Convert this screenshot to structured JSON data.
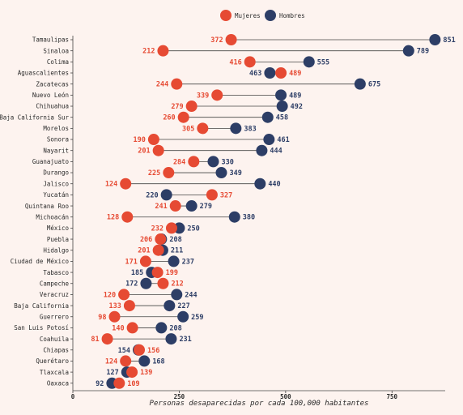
{
  "chart_data": {
    "type": "dumbbell",
    "xlabel": "Personas desaparecidas por cada 100,000 habitantes",
    "xlim": [
      0,
      875
    ],
    "xticks": [
      "0",
      "250",
      "500",
      "750"
    ],
    "tick_values": [
      0,
      250,
      500,
      750
    ],
    "legend": {
      "placement": "top-center",
      "entries": [
        "Mujeres",
        "Hombres"
      ]
    },
    "colors": {
      "mujeres": "#e64a33",
      "hombres": "#2d3e66",
      "connector": "#444444",
      "background": "#fdf3ef"
    },
    "categories": [
      "Tamaulipas",
      "Sinaloa",
      "Colima",
      "Aguascalientes",
      "Zacatecas",
      "Nuevo León",
      "Chihuahua",
      "Baja California Sur",
      "Morelos",
      "Sonora",
      "Nayarit",
      "Guanajuato",
      "Durango",
      "Jalisco",
      "Yucatán",
      "Quintana Roo",
      "Michoacán",
      "México",
      "Puebla",
      "Hidalgo",
      "Ciudad de México",
      "Tabasco",
      "Campeche",
      "Veracruz",
      "Baja California",
      "Guerrero",
      "San Luis Potosí",
      "Coahuila",
      "Chiapas",
      "Querétaro",
      "Tlaxcala",
      "Oaxaca"
    ],
    "series": [
      {
        "name": "Mujeres",
        "values": [
          372,
          212,
          416,
          489,
          244,
          339,
          279,
          260,
          305,
          190,
          201,
          284,
          225,
          124,
          327,
          241,
          128,
          232,
          206,
          201,
          171,
          199,
          212,
          120,
          133,
          98,
          140,
          81,
          156,
          124,
          139,
          109
        ]
      },
      {
        "name": "Hombres",
        "values": [
          851,
          789,
          555,
          463,
          675,
          489,
          492,
          458,
          383,
          461,
          444,
          330,
          349,
          440,
          220,
          279,
          380,
          250,
          208,
          211,
          237,
          185,
          172,
          244,
          227,
          259,
          208,
          231,
          154,
          168,
          127,
          92
        ]
      }
    ]
  }
}
